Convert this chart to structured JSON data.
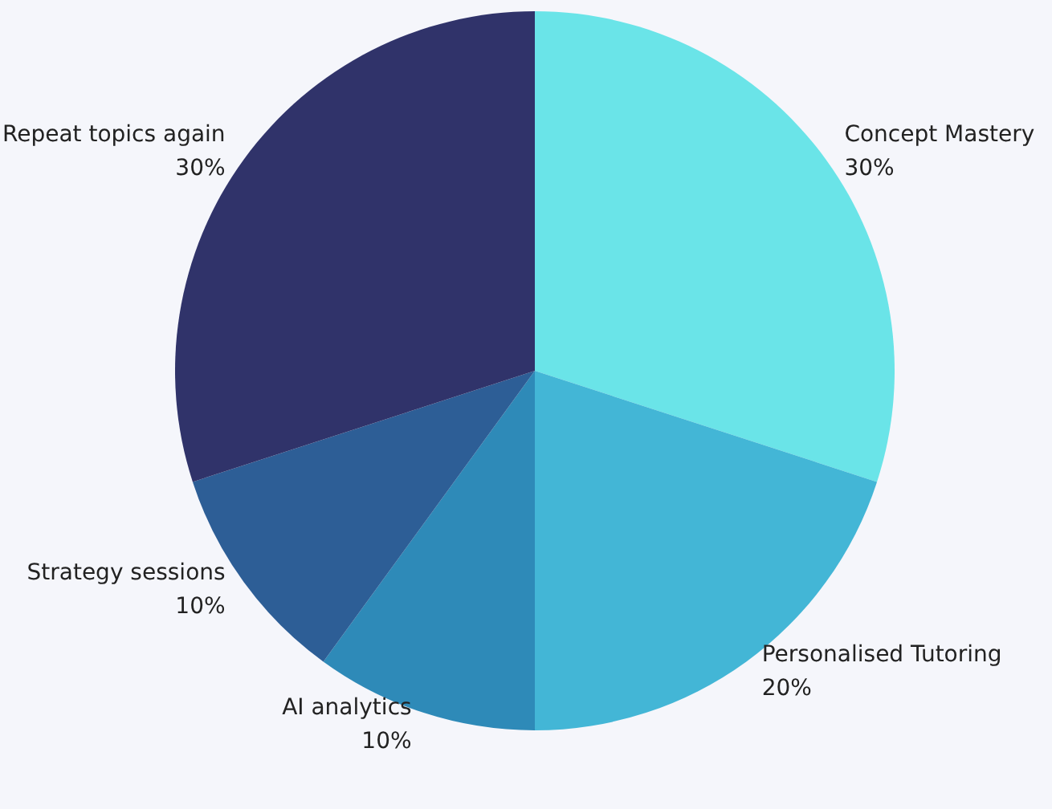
{
  "chart_data": {
    "type": "pie",
    "categories": [
      "Concept Mastery",
      "Personalised Tutoring",
      "AI analytics",
      "Strategy sessions",
      "Repeat topics again"
    ],
    "values": [
      30,
      20,
      10,
      10,
      30
    ],
    "value_labels": [
      "30%",
      "20%",
      "10%",
      "10%",
      "30%"
    ],
    "colors": [
      "#6ae4e8",
      "#43b6d6",
      "#2e8ab8",
      "#2d5e96",
      "#30336a"
    ],
    "legend": false
  }
}
